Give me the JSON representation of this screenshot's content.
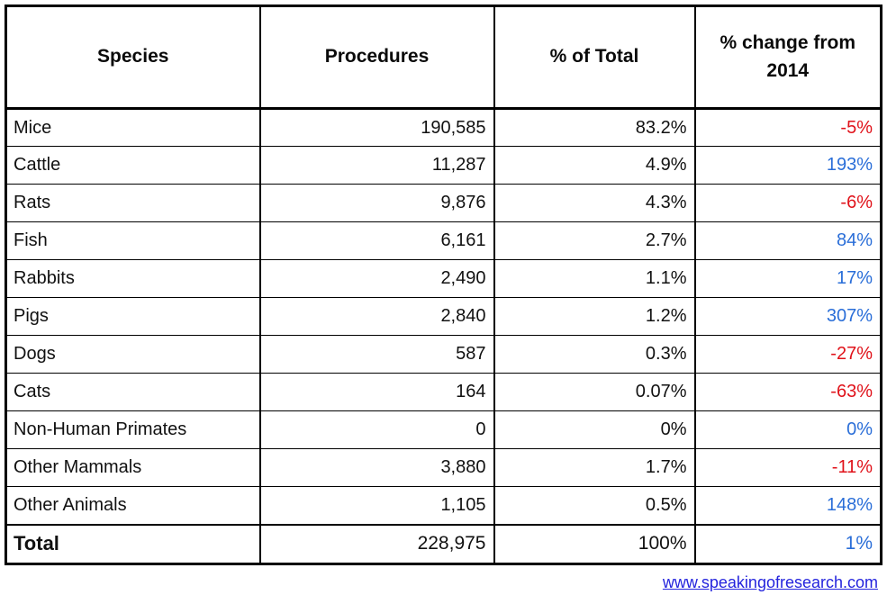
{
  "chart_data": {
    "type": "table",
    "title": "",
    "columns": [
      "Species",
      "Procedures",
      "% of Total",
      "% change from 2014"
    ],
    "rows": [
      {
        "species": "Mice",
        "procedures": 190585,
        "pct_of_total": "83.2%",
        "pct_change": "-5%"
      },
      {
        "species": "Cattle",
        "procedures": 11287,
        "pct_of_total": "4.9%",
        "pct_change": "193%"
      },
      {
        "species": "Rats",
        "procedures": 9876,
        "pct_of_total": "4.3%",
        "pct_change": "-6%"
      },
      {
        "species": "Fish",
        "procedures": 6161,
        "pct_of_total": "2.7%",
        "pct_change": "84%"
      },
      {
        "species": "Rabbits",
        "procedures": 2490,
        "pct_of_total": "1.1%",
        "pct_change": "17%"
      },
      {
        "species": "Pigs",
        "procedures": 2840,
        "pct_of_total": "1.2%",
        "pct_change": "307%"
      },
      {
        "species": "Dogs",
        "procedures": 587,
        "pct_of_total": "0.3%",
        "pct_change": "-27%"
      },
      {
        "species": "Cats",
        "procedures": 164,
        "pct_of_total": "0.07%",
        "pct_change": "-63%"
      },
      {
        "species": "Non-Human Primates",
        "procedures": 0,
        "pct_of_total": "0%",
        "pct_change": "0%"
      },
      {
        "species": "Other Mammals",
        "procedures": 3880,
        "pct_of_total": "1.7%",
        "pct_change": "-11%"
      },
      {
        "species": "Other Animals",
        "procedures": 1105,
        "pct_of_total": "0.5%",
        "pct_change": "148%"
      }
    ],
    "total_row": {
      "species": "Total",
      "procedures": 228975,
      "pct_of_total": "100%",
      "pct_change": "1%"
    }
  },
  "table": {
    "columns": [
      {
        "label": "Species"
      },
      {
        "label": "Procedures"
      },
      {
        "label": "% of Total"
      },
      {
        "label": "% change from 2014"
      }
    ],
    "rows": [
      {
        "species": "Mice",
        "procedures": "190,585",
        "pct_of_total": "83.2%",
        "pct_change": "-5%"
      },
      {
        "species": "Cattle",
        "procedures": "11,287",
        "pct_of_total": "4.9%",
        "pct_change": "193%"
      },
      {
        "species": "Rats",
        "procedures": "9,876",
        "pct_of_total": "4.3%",
        "pct_change": "-6%"
      },
      {
        "species": "Fish",
        "procedures": "6,161",
        "pct_of_total": "2.7%",
        "pct_change": "84%"
      },
      {
        "species": "Rabbits",
        "procedures": "2,490",
        "pct_of_total": "1.1%",
        "pct_change": "17%"
      },
      {
        "species": "Pigs",
        "procedures": "2,840",
        "pct_of_total": "1.2%",
        "pct_change": "307%"
      },
      {
        "species": "Dogs",
        "procedures": "587",
        "pct_of_total": "0.3%",
        "pct_change": "-27%"
      },
      {
        "species": "Cats",
        "procedures": "164",
        "pct_of_total": "0.07%",
        "pct_change": "-63%"
      },
      {
        "species": "Non-Human Primates",
        "procedures": "0",
        "pct_of_total": "0%",
        "pct_change": "0%"
      },
      {
        "species": "Other Mammals",
        "procedures": "3,880",
        "pct_of_total": "1.7%",
        "pct_change": "-11%"
      },
      {
        "species": "Other Animals",
        "procedures": "1,105",
        "pct_of_total": "0.5%",
        "pct_change": "148%"
      }
    ],
    "total_row": {
      "species": "Total",
      "procedures": "228,975",
      "pct_of_total": "100%",
      "pct_change": "1%"
    }
  },
  "footer": {
    "link": "www.speakingofresearch.com"
  },
  "colors": {
    "negative_change": "#e0121a",
    "positive_change": "#2a6ed8",
    "link": "#2424dd",
    "border": "#000000",
    "background": "#ffffff"
  }
}
